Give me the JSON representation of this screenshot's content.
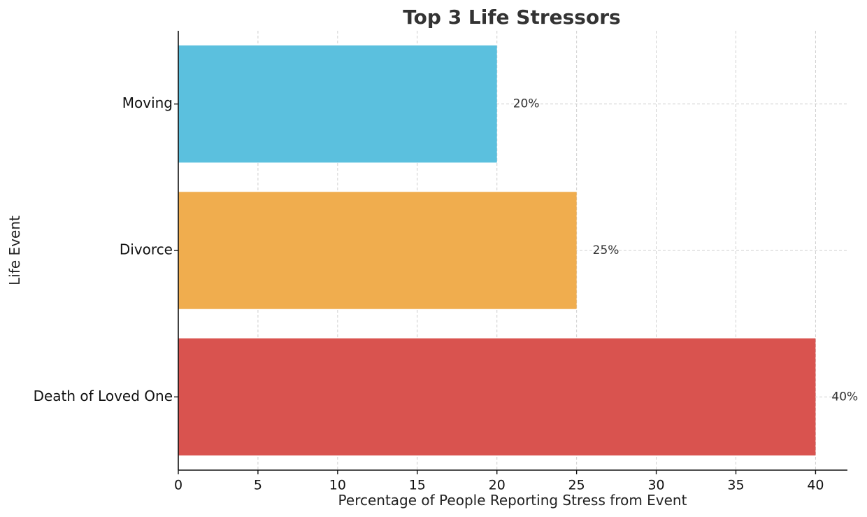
{
  "chart_data": {
    "type": "bar",
    "orientation": "horizontal",
    "title": "Top 3 Life Stressors",
    "xlabel": "Percentage of People Reporting Stress from Event",
    "ylabel": "Life Event",
    "xlim": [
      0,
      42
    ],
    "xticks": [
      0,
      5,
      10,
      15,
      20,
      25,
      30,
      35,
      40
    ],
    "grid": true,
    "categories": [
      "Death of Loved One",
      "Divorce",
      "Moving"
    ],
    "values": [
      40,
      25,
      20
    ],
    "data_labels": [
      "40%",
      "25%",
      "20%"
    ],
    "colors": [
      "#d9534f",
      "#f0ad4e",
      "#5bc0de"
    ]
  }
}
